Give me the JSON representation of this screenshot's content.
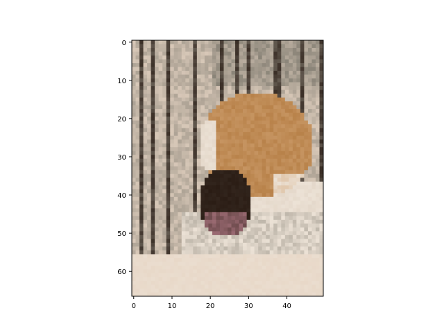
{
  "chart_data": {
    "type": "heatmap",
    "title": "",
    "xlabel": "",
    "ylabel": "",
    "image_description_note": null,
    "xlim": [
      -0.5,
      49.5
    ],
    "ylim": [
      66.5,
      -0.5
    ],
    "x_ticks": [
      0,
      10,
      20,
      30,
      40
    ],
    "y_ticks": [
      0,
      10,
      20,
      30,
      40,
      50,
      60
    ],
    "grid_cols": 50,
    "grid_rows": 67,
    "colors": {
      "background": "#ffffff",
      "axis": "#000000",
      "bg_light": "#d8c8b8",
      "bg_dark": "#3a2e26",
      "bg_gray": "#8a8478",
      "fur_orange": "#b8824a",
      "fur_tan": "#cfa070",
      "fur_white": "#ece2d6",
      "mouth_dark": "#2a1c14",
      "tongue": "#9a6a72",
      "floor": "#e8d8c8"
    }
  }
}
